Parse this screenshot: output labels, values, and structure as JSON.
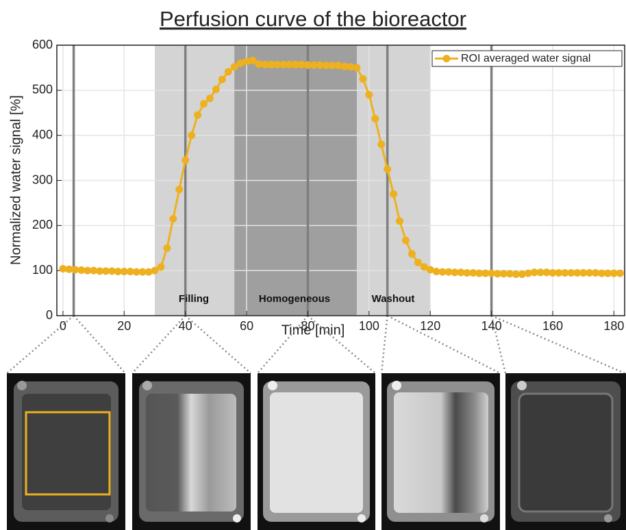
{
  "chart_data": {
    "type": "line",
    "title": "Perfusion curve of the bioreactor",
    "x_label": "Time [min]",
    "y_label": "Normalized water signal [%]",
    "x": [
      0,
      2,
      4,
      6,
      8,
      10,
      12,
      14,
      16,
      18,
      20,
      22,
      24,
      26,
      28,
      30,
      32,
      34,
      36,
      38,
      40,
      42,
      44,
      46,
      48,
      50,
      52,
      54,
      56,
      58,
      60,
      62,
      64,
      66,
      68,
      70,
      72,
      74,
      76,
      78,
      80,
      82,
      84,
      86,
      88,
      90,
      92,
      94,
      96,
      98,
      100,
      102,
      104,
      106,
      108,
      110,
      112,
      114,
      116,
      118,
      120,
      122,
      124,
      126,
      128,
      130,
      132,
      134,
      136,
      138,
      140,
      142,
      144,
      146,
      148,
      150,
      152,
      154,
      156,
      158,
      160,
      162,
      164,
      166,
      168,
      170,
      172,
      174,
      176,
      178,
      180,
      182
    ],
    "series": [
      {
        "name": "ROI averaged water signal",
        "color": "#edb120",
        "values": [
          104,
          103,
          102,
          101,
          100,
          100,
          99,
          99,
          99,
          98,
          98,
          98,
          97,
          97,
          97,
          100,
          108,
          150,
          215,
          280,
          345,
          400,
          445,
          470,
          482,
          502,
          524,
          541,
          552,
          560,
          564,
          566,
          558,
          557,
          557,
          557,
          557,
          557,
          557,
          557,
          556,
          556,
          556,
          555,
          555,
          555,
          553,
          552,
          550,
          525,
          490,
          437,
          380,
          325,
          270,
          210,
          167,
          137,
          118,
          108,
          102,
          98,
          97,
          97,
          96,
          96,
          95,
          95,
          94,
          94,
          94,
          93,
          93,
          93,
          92,
          92,
          94,
          96,
          96,
          96,
          95,
          95,
          95,
          95,
          95,
          95,
          95,
          95,
          94,
          94,
          94,
          94
        ]
      }
    ],
    "regions": [
      [
        30,
        120
      ],
      [
        56,
        96
      ]
    ],
    "region_colors": [
      "#d4d4d4",
      "#9f9f9f"
    ],
    "vlines": [
      3.5,
      40,
      80,
      106,
      140
    ],
    "annotations": [
      "Filling",
      "Homogeneous",
      "Washout"
    ],
    "xlim": [
      -2,
      183.5
    ],
    "xticks": [
      0,
      20,
      40,
      60,
      80,
      100,
      120,
      140,
      160,
      180
    ],
    "ylim": [
      0,
      600
    ],
    "yticks": [
      0,
      100,
      200,
      300,
      400,
      500,
      600
    ],
    "grid": true,
    "legend": "northeast"
  }
}
